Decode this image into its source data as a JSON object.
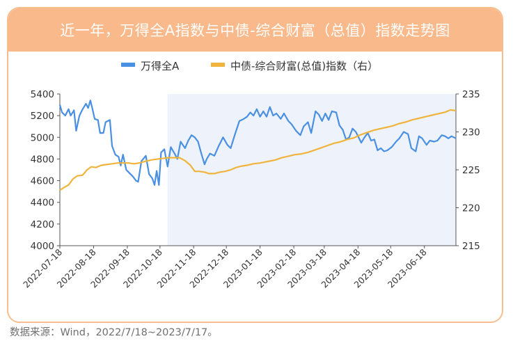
{
  "header": {
    "title": "近一年，万得全A指数与中债-综合财富（总值）指数走势图"
  },
  "footer": {
    "source": "数据来源：Wind，2022/7/18~2023/7/17。"
  },
  "colors": {
    "header_bg": "#f9b98a",
    "border": "#f6be8e",
    "shade": "#edf2fb",
    "series1": "#4a90e2",
    "series2": "#f0b43c"
  },
  "chart_data": {
    "type": "line",
    "title": "近一年，万得全A指数与中债-综合财富（总值）指数走势图",
    "x_ticks": [
      "2022-07-18",
      "2022-08-18",
      "2022-09-18",
      "2022-10-18",
      "2022-11-18",
      "2022-12-18",
      "2023-01-18",
      "2023-02-18",
      "2023-03-18",
      "2023-04-18",
      "2023-05-18",
      "2023-06-18"
    ],
    "y_left": {
      "ticks": [
        4000,
        4200,
        4400,
        4600,
        4800,
        5000,
        5200,
        5400
      ],
      "ylim": [
        4000,
        5400
      ]
    },
    "y_right": {
      "ticks": [
        215,
        220,
        225,
        230,
        235
      ],
      "ylim": [
        215,
        235
      ]
    },
    "shaded_region": [
      "2022-10-25",
      "2023-07-17"
    ],
    "legend": {
      "position": "top",
      "items": [
        "万得全A",
        "中债-综合财富(总值)指数（右）"
      ]
    },
    "grid": false,
    "series": [
      {
        "name": "万得全A",
        "axis": "left",
        "points": [
          [
            "2022-07-18",
            5300
          ],
          [
            "2022-07-20",
            5230
          ],
          [
            "2022-07-23",
            5200
          ],
          [
            "2022-07-26",
            5260
          ],
          [
            "2022-07-28",
            5200
          ],
          [
            "2022-07-31",
            5250
          ],
          [
            "2022-08-02",
            5060
          ],
          [
            "2022-08-05",
            5200
          ],
          [
            "2022-08-08",
            5260
          ],
          [
            "2022-08-11",
            5310
          ],
          [
            "2022-08-13",
            5270
          ],
          [
            "2022-08-15",
            5340
          ],
          [
            "2022-08-17",
            5260
          ],
          [
            "2022-08-19",
            5170
          ],
          [
            "2022-08-22",
            5160
          ],
          [
            "2022-08-24",
            5040
          ],
          [
            "2022-08-27",
            5040
          ],
          [
            "2022-08-29",
            5140
          ],
          [
            "2022-08-31",
            5150
          ],
          [
            "2022-09-02",
            5160
          ],
          [
            "2022-09-04",
            4920
          ],
          [
            "2022-09-07",
            4840
          ],
          [
            "2022-09-10",
            4820
          ],
          [
            "2022-09-12",
            4740
          ],
          [
            "2022-09-14",
            4840
          ],
          [
            "2022-09-17",
            4700
          ],
          [
            "2022-09-20",
            4670
          ],
          [
            "2022-09-23",
            4640
          ],
          [
            "2022-09-26",
            4600
          ],
          [
            "2022-09-28",
            4590
          ],
          [
            "2022-10-01",
            4780
          ],
          [
            "2022-10-05",
            4830
          ],
          [
            "2022-10-08",
            4660
          ],
          [
            "2022-10-11",
            4620
          ],
          [
            "2022-10-13",
            4560
          ],
          [
            "2022-10-15",
            4690
          ],
          [
            "2022-10-17",
            4560
          ],
          [
            "2022-10-19",
            4860
          ],
          [
            "2022-10-22",
            4890
          ],
          [
            "2022-10-25",
            4730
          ],
          [
            "2022-10-28",
            4910
          ],
          [
            "2022-11-01",
            4840
          ],
          [
            "2022-11-03",
            4800
          ],
          [
            "2022-11-06",
            4960
          ],
          [
            "2022-11-10",
            4900
          ],
          [
            "2022-11-13",
            4970
          ],
          [
            "2022-11-16",
            5020
          ],
          [
            "2022-11-19",
            5000
          ],
          [
            "2022-11-22",
            4960
          ],
          [
            "2022-11-25",
            4850
          ],
          [
            "2022-11-28",
            4750
          ],
          [
            "2022-11-30",
            4800
          ],
          [
            "2022-12-03",
            4850
          ],
          [
            "2022-12-07",
            4830
          ],
          [
            "2022-12-11",
            4920
          ],
          [
            "2022-12-15",
            5000
          ],
          [
            "2022-12-19",
            4930
          ],
          [
            "2022-12-22",
            4900
          ],
          [
            "2022-12-26",
            5030
          ],
          [
            "2022-12-30",
            5150
          ],
          [
            "2023-01-03",
            5170
          ],
          [
            "2023-01-06",
            5190
          ],
          [
            "2023-01-09",
            5230
          ],
          [
            "2023-01-12",
            5200
          ],
          [
            "2023-01-15",
            5260
          ],
          [
            "2023-01-18",
            5190
          ],
          [
            "2023-01-21",
            5240
          ],
          [
            "2023-01-24",
            5190
          ],
          [
            "2023-01-27",
            5280
          ],
          [
            "2023-01-30",
            5200
          ],
          [
            "2023-02-02",
            5220
          ],
          [
            "2023-02-06",
            5170
          ],
          [
            "2023-02-09",
            5220
          ],
          [
            "2023-02-13",
            5150
          ],
          [
            "2023-02-16",
            5120
          ],
          [
            "2023-02-20",
            5060
          ],
          [
            "2023-02-24",
            5020
          ],
          [
            "2023-02-27",
            5100
          ],
          [
            "2023-03-03",
            5140
          ],
          [
            "2023-03-06",
            5040
          ],
          [
            "2023-03-10",
            5240
          ],
          [
            "2023-03-13",
            5210
          ],
          [
            "2023-03-16",
            5150
          ],
          [
            "2023-03-19",
            5220
          ],
          [
            "2023-03-22",
            5160
          ],
          [
            "2023-03-25",
            5240
          ],
          [
            "2023-03-29",
            5230
          ],
          [
            "2023-04-01",
            5110
          ],
          [
            "2023-04-04",
            5070
          ],
          [
            "2023-04-07",
            4980
          ],
          [
            "2023-04-10",
            5000
          ],
          [
            "2023-04-13",
            5080
          ],
          [
            "2023-04-16",
            5050
          ],
          [
            "2023-04-19",
            4990
          ],
          [
            "2023-04-21",
            4950
          ],
          [
            "2023-04-24",
            5000
          ],
          [
            "2023-04-27",
            5040
          ],
          [
            "2023-04-30",
            4970
          ],
          [
            "2023-05-03",
            4980
          ],
          [
            "2023-05-06",
            4880
          ],
          [
            "2023-05-09",
            4900
          ],
          [
            "2023-05-12",
            4870
          ],
          [
            "2023-05-15",
            4880
          ],
          [
            "2023-05-19",
            4910
          ],
          [
            "2023-05-23",
            4960
          ],
          [
            "2023-05-26",
            4990
          ],
          [
            "2023-05-30",
            5050
          ],
          [
            "2023-06-03",
            5030
          ],
          [
            "2023-06-06",
            4900
          ],
          [
            "2023-06-10",
            4870
          ],
          [
            "2023-06-13",
            5010
          ],
          [
            "2023-06-16",
            4990
          ],
          [
            "2023-06-20",
            4930
          ],
          [
            "2023-06-23",
            4970
          ],
          [
            "2023-06-27",
            4960
          ],
          [
            "2023-06-30",
            4970
          ],
          [
            "2023-07-04",
            5020
          ],
          [
            "2023-07-07",
            5010
          ],
          [
            "2023-07-10",
            4990
          ],
          [
            "2023-07-13",
            5010
          ],
          [
            "2023-07-17",
            4990
          ]
        ]
      },
      {
        "name": "中债-综合财富(总值)指数（右）",
        "axis": "right",
        "points": [
          [
            "2022-07-18",
            222.3
          ],
          [
            "2022-07-22",
            222.7
          ],
          [
            "2022-07-26",
            223.0
          ],
          [
            "2022-07-30",
            223.8
          ],
          [
            "2022-08-03",
            224.2
          ],
          [
            "2022-08-08",
            224.3
          ],
          [
            "2022-08-12",
            225.0
          ],
          [
            "2022-08-16",
            225.4
          ],
          [
            "2022-08-20",
            225.3
          ],
          [
            "2022-08-25",
            225.6
          ],
          [
            "2022-08-30",
            225.7
          ],
          [
            "2022-09-04",
            225.8
          ],
          [
            "2022-09-09",
            225.9
          ],
          [
            "2022-09-14",
            225.9
          ],
          [
            "2022-09-19",
            225.9
          ],
          [
            "2022-09-24",
            225.8
          ],
          [
            "2022-09-29",
            225.9
          ],
          [
            "2022-10-04",
            226.1
          ],
          [
            "2022-10-10",
            226.3
          ],
          [
            "2022-10-15",
            226.4
          ],
          [
            "2022-10-20",
            226.5
          ],
          [
            "2022-10-26",
            226.6
          ],
          [
            "2022-10-31",
            226.6
          ],
          [
            "2022-11-05",
            226.6
          ],
          [
            "2022-11-10",
            226.2
          ],
          [
            "2022-11-15",
            225.6
          ],
          [
            "2022-11-19",
            224.8
          ],
          [
            "2022-11-23",
            224.8
          ],
          [
            "2022-11-28",
            224.7
          ],
          [
            "2022-12-02",
            224.5
          ],
          [
            "2022-12-07",
            224.5
          ],
          [
            "2022-12-12",
            224.7
          ],
          [
            "2022-12-17",
            224.8
          ],
          [
            "2022-12-22",
            225.0
          ],
          [
            "2022-12-27",
            225.3
          ],
          [
            "2023-01-01",
            225.5
          ],
          [
            "2023-01-06",
            225.6
          ],
          [
            "2023-01-12",
            225.8
          ],
          [
            "2023-01-18",
            225.9
          ],
          [
            "2023-01-25",
            226.1
          ],
          [
            "2023-02-01",
            226.3
          ],
          [
            "2023-02-07",
            226.6
          ],
          [
            "2023-02-13",
            226.8
          ],
          [
            "2023-02-19",
            227.0
          ],
          [
            "2023-02-25",
            227.1
          ],
          [
            "2023-03-03",
            227.3
          ],
          [
            "2023-03-09",
            227.6
          ],
          [
            "2023-03-15",
            227.9
          ],
          [
            "2023-03-21",
            228.2
          ],
          [
            "2023-03-27",
            228.5
          ],
          [
            "2023-04-02",
            228.7
          ],
          [
            "2023-04-08",
            229.0
          ],
          [
            "2023-04-14",
            229.2
          ],
          [
            "2023-04-20",
            229.6
          ],
          [
            "2023-04-26",
            229.9
          ],
          [
            "2023-05-02",
            230.2
          ],
          [
            "2023-05-08",
            230.4
          ],
          [
            "2023-05-14",
            230.6
          ],
          [
            "2023-05-20",
            230.8
          ],
          [
            "2023-05-26",
            231.1
          ],
          [
            "2023-06-01",
            231.3
          ],
          [
            "2023-06-07",
            231.6
          ],
          [
            "2023-06-13",
            231.8
          ],
          [
            "2023-06-19",
            232.0
          ],
          [
            "2023-06-25",
            232.2
          ],
          [
            "2023-07-01",
            232.4
          ],
          [
            "2023-07-07",
            232.6
          ],
          [
            "2023-07-12",
            232.9
          ],
          [
            "2023-07-17",
            232.8
          ]
        ]
      }
    ]
  }
}
